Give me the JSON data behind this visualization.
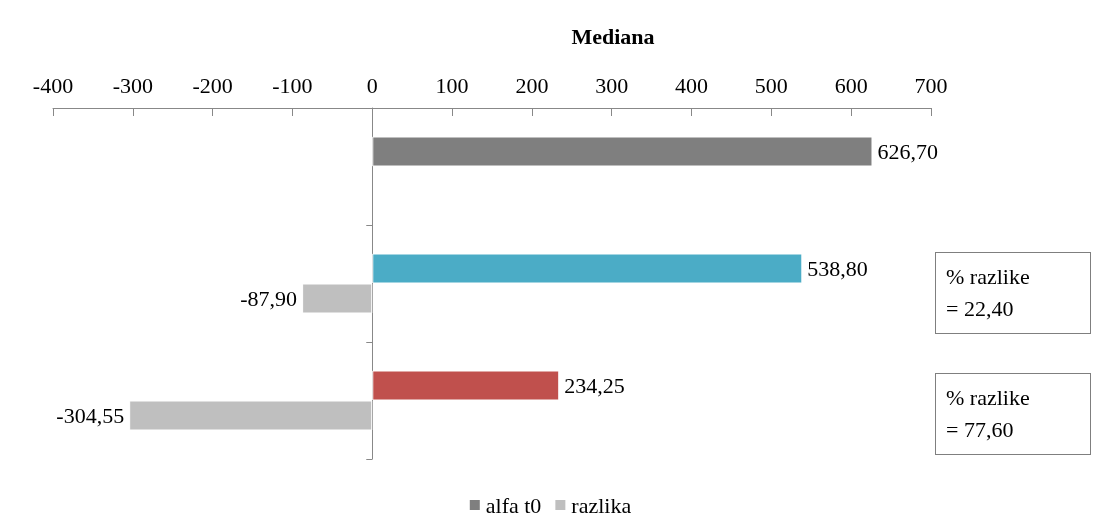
{
  "chart_data": {
    "type": "bar",
    "orientation": "horizontal",
    "title": "Mediana",
    "categories": [
      null,
      null,
      null
    ],
    "series": [
      {
        "name": "alfa t0",
        "color": "#7f7f7f",
        "colors": [
          "#7f7f7f",
          "#4bacc6",
          "#c0504d"
        ],
        "values": [
          626.7,
          538.8,
          234.25
        ],
        "value_labels": [
          "626,70",
          "538,80",
          "234,25"
        ]
      },
      {
        "name": "razlika",
        "color": "#bfbfbf",
        "values": [
          null,
          -87.9,
          -304.55
        ],
        "value_labels": [
          null,
          "-87,90",
          "-304,55"
        ]
      }
    ],
    "xlim": [
      -400,
      700
    ],
    "xticks": [
      -400,
      -300,
      -200,
      -100,
      0,
      100,
      200,
      300,
      400,
      500,
      600,
      700
    ],
    "tick_labels": "x",
    "legend": "bottom",
    "annotations": [
      "% razlike\n= 22,40",
      "% razlike\n= 77,60"
    ]
  }
}
